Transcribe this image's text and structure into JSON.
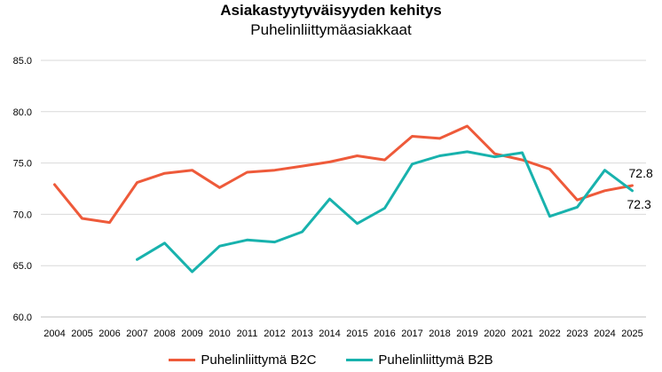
{
  "chart_data": {
    "type": "line",
    "title": "Asiakastyytyväisyyden kehitys",
    "subtitle": "Puhelinliittymäasiakkaat",
    "x": [
      "2004",
      "2005",
      "2006",
      "2007",
      "2008",
      "2009",
      "2010",
      "2011",
      "2012",
      "2013",
      "2014",
      "2015",
      "2016",
      "2017",
      "2018",
      "2019",
      "2020",
      "2021",
      "2022",
      "2023",
      "2024",
      "2025"
    ],
    "ylim": [
      60.0,
      85.0
    ],
    "yticks": [
      "60.0",
      "65.0",
      "70.0",
      "75.0",
      "80.0",
      "85.0"
    ],
    "grid": true,
    "legend_position": "bottom",
    "series": [
      {
        "name": "Puhelinliittymä B2C",
        "color": "#ee5a3a",
        "values": [
          72.9,
          69.6,
          69.2,
          73.1,
          74.0,
          74.3,
          72.6,
          74.1,
          74.3,
          74.7,
          75.1,
          75.7,
          75.3,
          77.6,
          77.4,
          78.6,
          75.9,
          75.3,
          74.4,
          71.4,
          72.3,
          72.8
        ],
        "end_label": "72.8"
      },
      {
        "name": "Puhelinliittymä B2B",
        "color": "#18b2ad",
        "values": [
          null,
          null,
          null,
          65.6,
          67.2,
          64.4,
          66.9,
          67.5,
          67.3,
          68.3,
          71.5,
          69.1,
          70.6,
          74.9,
          75.7,
          76.1,
          75.6,
          76.0,
          69.8,
          70.7,
          74.3,
          72.3
        ],
        "end_label": "72.3"
      }
    ]
  }
}
